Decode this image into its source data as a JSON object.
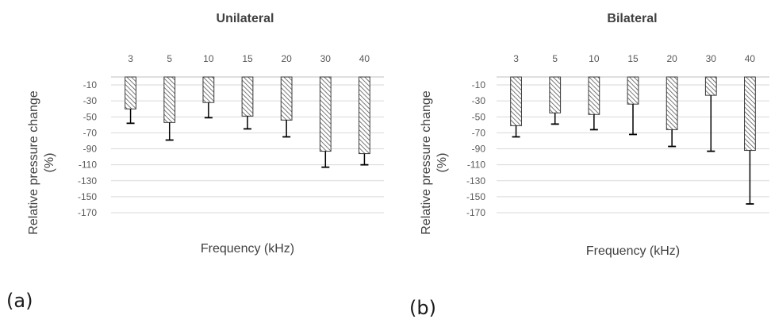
{
  "chart_data": [
    {
      "type": "bar",
      "title": "Unilateral",
      "panel_label": "(a)",
      "xlabel": "Frequency (kHz)",
      "ylabel": "Relative pressure change (%)",
      "categories": [
        "3",
        "5",
        "10",
        "15",
        "20",
        "30",
        "40"
      ],
      "values": [
        -40,
        -57,
        -32,
        -49,
        -54,
        -93,
        -96
      ],
      "error_lower": [
        -58,
        -79,
        -51,
        -65,
        -75,
        -113,
        -110
      ],
      "ylim": [
        -180,
        0
      ],
      "yticks": [
        -10,
        -30,
        -50,
        -70,
        -90,
        -110,
        -130,
        -150,
        -170
      ],
      "grid": true,
      "bar_fill": "hatched"
    },
    {
      "type": "bar",
      "title": "Bilateral",
      "panel_label": "(b)",
      "xlabel": "Frequency (kHz)",
      "ylabel": "Relative pressure change (%)",
      "categories": [
        "3",
        "5",
        "10",
        "15",
        "20",
        "30",
        "40"
      ],
      "values": [
        -61,
        -45,
        -47,
        -34,
        -66,
        -23,
        -92
      ],
      "error_lower": [
        -75,
        -59,
        -66,
        -72,
        -87,
        -93,
        -159
      ],
      "ylim": [
        -180,
        0
      ],
      "yticks": [
        -10,
        -30,
        -50,
        -70,
        -90,
        -110,
        -130,
        -150,
        -170
      ],
      "grid": true,
      "bar_fill": "hatched"
    }
  ],
  "colors": {
    "bar_outline": "#3a3a3a",
    "hatch": "#555555",
    "grid": "#d9d9d9",
    "axis_text": "#595959",
    "title": "#404040",
    "error_bar": "#000000"
  }
}
